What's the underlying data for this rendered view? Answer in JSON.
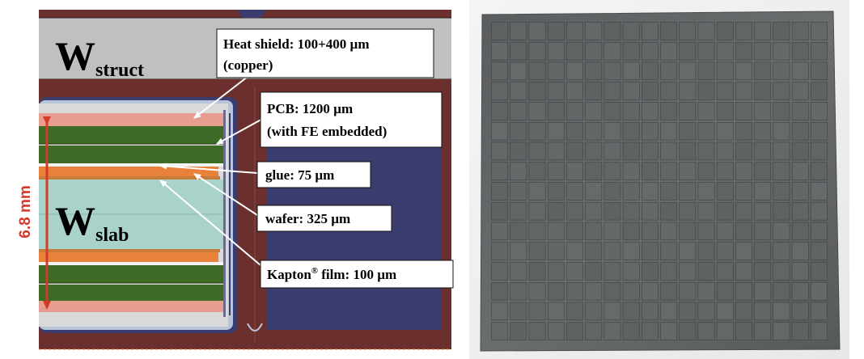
{
  "left_panel": {
    "w_struct": {
      "main": "W",
      "sub": "struct"
    },
    "w_slab": {
      "main": "W",
      "sub": "slab"
    },
    "dimension": "6.8 mm",
    "labels": {
      "heat_shield_line1": "Heat shield: 100+400 µm",
      "heat_shield_line2": "(copper)",
      "pcb_line1": "PCB: 1200 µm",
      "pcb_line2": "(with FE embedded)",
      "glue": "glue: 75 µm",
      "wafer": "wafer: 325 µm",
      "kapton_name": "Kapton",
      "kapton_reg": "®",
      "kapton_rest": " film: 100 µm"
    }
  },
  "right_panel": {
    "grid_rows": 16,
    "grid_cols": 18
  },
  "colors": {
    "copper": "#e79e90",
    "pcb": "#3d6a24",
    "wafer": "#e8823a",
    "tungsten_slab": "#a9d3ca",
    "tungsten_struct": "#c0c0c0",
    "frame": "#6b2f2d",
    "cooling": "#3b3d6e",
    "arrow_dimension": "#d33a2a",
    "silicon": "#5e6162"
  }
}
